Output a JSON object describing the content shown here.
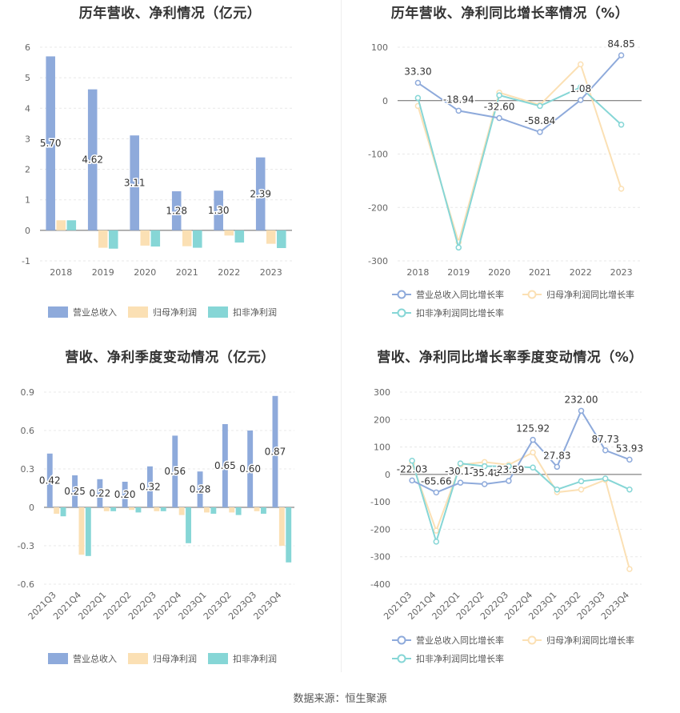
{
  "footer": {
    "source": "数据来源：恒生聚源"
  },
  "colors": {
    "revenue": "#8eaadb",
    "net_profit": "#fbe0b4",
    "deducted_profit": "#86d6d6",
    "axis": "#999999",
    "grid": "#e8e8e8"
  },
  "chart_data": [
    {
      "type": "bar",
      "title": "历年营收、净利情况（亿元）",
      "categories": [
        "2018",
        "2019",
        "2020",
        "2021",
        "2022",
        "2023"
      ],
      "series": [
        {
          "name": "营业总收入",
          "values": [
            5.7,
            4.62,
            3.11,
            1.28,
            1.3,
            2.39
          ]
        },
        {
          "name": "归母净利润",
          "values": [
            0.33,
            -0.57,
            -0.5,
            -0.52,
            -0.17,
            -0.44
          ]
        },
        {
          "name": "扣非净利润",
          "values": [
            0.33,
            -0.6,
            -0.53,
            -0.57,
            -0.4,
            -0.58
          ]
        }
      ],
      "data_labels": [
        "5.70",
        "4.62",
        "3.11",
        "1.28",
        "1.30",
        "2.39"
      ],
      "yticks": [
        "-1",
        "0",
        "1",
        "2",
        "3",
        "4",
        "5",
        "6"
      ],
      "ylim": [
        -1,
        6
      ],
      "legend": "bottom"
    },
    {
      "type": "line",
      "title": "历年营收、净利同比增长率情况（%）",
      "categories": [
        "2018",
        "2019",
        "2020",
        "2021",
        "2022",
        "2023"
      ],
      "series": [
        {
          "name": "营业总收入同比增长率",
          "values": [
            33.3,
            -18.94,
            -32.6,
            -58.84,
            1.08,
            84.85
          ]
        },
        {
          "name": "归母净利润同比增长率",
          "values": [
            -10,
            -265,
            15,
            -8,
            68,
            -165
          ]
        },
        {
          "name": "扣非净利润同比增长率",
          "values": [
            5,
            -275,
            10,
            -10,
            25,
            -45
          ]
        }
      ],
      "data_labels": [
        "33.30",
        "-18.94",
        "-32.60",
        "-58.84",
        "1.08",
        "84.85"
      ],
      "yticks": [
        "-300",
        "-200",
        "-100",
        "0",
        "100"
      ],
      "ylim": [
        -300,
        100
      ],
      "legend": "bottom"
    },
    {
      "type": "bar",
      "title": "营收、净利季度变动情况（亿元）",
      "categories": [
        "2021Q3",
        "2021Q4",
        "2022Q1",
        "2022Q2",
        "2022Q3",
        "2022Q4",
        "2023Q1",
        "2023Q2",
        "2023Q3",
        "2023Q4"
      ],
      "series": [
        {
          "name": "营业总收入",
          "values": [
            0.42,
            0.25,
            0.22,
            0.2,
            0.32,
            0.56,
            0.28,
            0.65,
            0.6,
            0.87
          ]
        },
        {
          "name": "归母净利润",
          "values": [
            -0.05,
            -0.37,
            -0.03,
            -0.02,
            -0.03,
            -0.06,
            -0.04,
            -0.04,
            -0.03,
            -0.3
          ]
        },
        {
          "name": "扣非净利润",
          "values": [
            -0.07,
            -0.38,
            -0.03,
            -0.04,
            -0.03,
            -0.28,
            -0.05,
            -0.06,
            -0.05,
            -0.43
          ]
        }
      ],
      "data_labels": [
        "0.42",
        "0.25",
        "0.22",
        "0.20",
        "0.32",
        "0.56",
        "0.28",
        "0.65",
        "0.60",
        "0.87"
      ],
      "yticks": [
        "-0.6",
        "-0.3",
        "0",
        "0.3",
        "0.6",
        "0.9"
      ],
      "ylim": [
        -0.6,
        0.9
      ],
      "legend": "bottom"
    },
    {
      "type": "line",
      "title": "营收、净利同比增长率季度变动情况（%）",
      "categories": [
        "2021Q3",
        "2021Q4",
        "2022Q1",
        "2022Q2",
        "2022Q3",
        "2022Q4",
        "2023Q1",
        "2023Q2",
        "2023Q3",
        "2023Q4"
      ],
      "series": [
        {
          "name": "营业总收入同比增长率",
          "values": [
            -22.03,
            -65.66,
            -30.12,
            -35.48,
            -23.59,
            125.92,
            27.83,
            232.0,
            87.73,
            53.93
          ]
        },
        {
          "name": "归母净利润同比增长率",
          "values": [
            40,
            -205,
            35,
            45,
            35,
            80,
            -65,
            -55,
            -20,
            -345
          ]
        },
        {
          "name": "扣非净利润同比增长率",
          "values": [
            50,
            -245,
            40,
            30,
            30,
            25,
            -55,
            -25,
            -15,
            -55
          ]
        }
      ],
      "data_labels": [
        "-22.03",
        "-65.66",
        "-30.12",
        "-35.48",
        "-23.59",
        "125.92",
        "27.83",
        "232.00",
        "87.73",
        "53.93"
      ],
      "yticks": [
        "-400",
        "-300",
        "-200",
        "-100",
        "0",
        "100",
        "200",
        "300"
      ],
      "ylim": [
        -400,
        300
      ],
      "legend": "bottom"
    }
  ]
}
